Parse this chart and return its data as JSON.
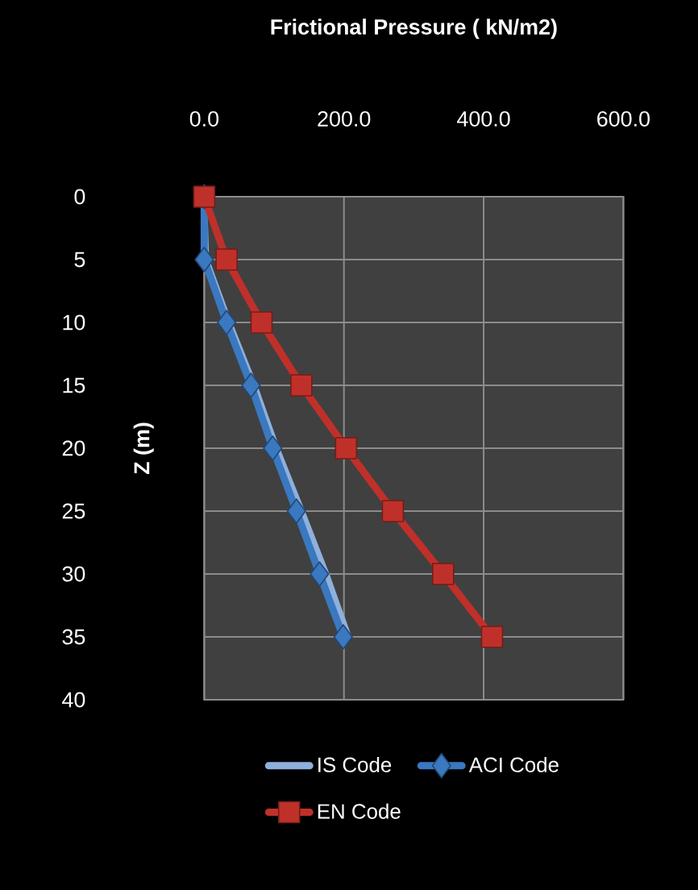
{
  "chart_data": {
    "type": "line",
    "xlabel": "Frictional Pressure ( kN/m2)",
    "ylabel": "Z (m)",
    "xlim": [
      0,
      600
    ],
    "xticks": [
      {
        "value": 0,
        "label": "0.0"
      },
      {
        "value": 200,
        "label": "200.0"
      },
      {
        "value": 400,
        "label": "400.0"
      },
      {
        "value": 600,
        "label": "600.0"
      }
    ],
    "ylim": [
      40,
      0
    ],
    "yticks": [
      0,
      5,
      10,
      15,
      20,
      25,
      30,
      35,
      40
    ],
    "grid": true,
    "legend": "bottom",
    "series": [
      {
        "name": "IS Code",
        "color": "#8fb0dc",
        "marker": "none",
        "x": [
          0,
          3,
          36,
          72,
          104,
          140,
          175,
          207
        ],
        "values": [
          0,
          5,
          10,
          15,
          20,
          25,
          30,
          35
        ]
      },
      {
        "name": "ACI Code",
        "color": "#3a78c0",
        "marker": "diamond",
        "x": [
          0,
          0,
          32,
          67,
          98,
          132,
          165,
          199
        ],
        "values": [
          0,
          5,
          10,
          15,
          20,
          25,
          30,
          35
        ]
      },
      {
        "name": "EN Code",
        "color": "#c0302a",
        "marker": "square",
        "x": [
          0,
          32,
          82,
          139,
          203,
          270,
          342,
          412
        ],
        "values": [
          0,
          5,
          10,
          15,
          20,
          25,
          30,
          35
        ]
      }
    ]
  }
}
